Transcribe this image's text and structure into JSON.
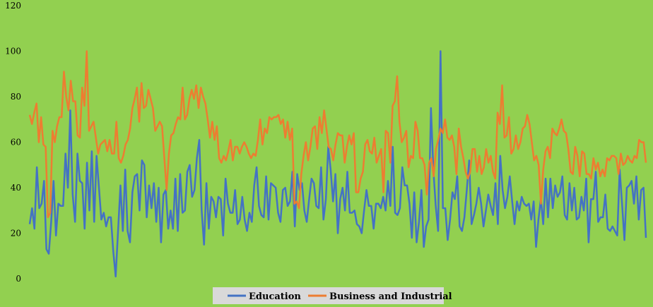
{
  "chart_data": {
    "type": "line",
    "title": "",
    "xlabel": "",
    "ylabel": "",
    "ylim": [
      0,
      120
    ],
    "yticks": [
      0,
      20,
      40,
      60,
      80,
      100,
      120
    ],
    "grid": false,
    "legend_position": "bottom",
    "series": [
      {
        "name": "Education",
        "color": "#4472C4",
        "values": [
          24,
          31,
          22,
          49,
          31,
          33,
          43,
          13,
          11,
          25,
          43,
          19,
          33,
          32,
          32,
          55,
          40,
          74,
          37,
          25,
          55,
          43,
          42,
          22,
          51,
          30,
          56,
          25,
          54,
          40,
          26,
          29,
          23,
          27,
          27,
          12,
          1,
          21,
          41,
          21,
          48,
          21,
          16,
          38,
          45,
          46,
          30,
          52,
          50,
          27,
          41,
          31,
          42,
          25,
          40,
          16,
          37,
          39,
          22,
          30,
          22,
          44,
          21,
          46,
          29,
          30,
          47,
          50,
          36,
          39,
          53,
          61,
          30,
          15,
          42,
          22,
          36,
          34,
          27,
          36,
          35,
          19,
          44,
          33,
          29,
          29,
          39,
          24,
          26,
          36,
          26,
          21,
          29,
          25,
          41,
          49,
          32,
          28,
          27,
          45,
          26,
          42,
          41,
          40,
          29,
          25,
          39,
          40,
          32,
          34,
          47,
          23,
          46,
          39,
          42,
          30,
          25,
          35,
          44,
          42,
          32,
          31,
          49,
          26,
          35,
          58,
          48,
          34,
          46,
          20,
          35,
          40,
          30,
          47,
          29,
          29,
          30,
          24,
          23,
          20,
          30,
          39,
          32,
          32,
          22,
          33,
          33,
          31,
          36,
          30,
          43,
          32,
          58,
          29,
          28,
          31,
          49,
          41,
          41,
          33,
          18,
          38,
          16,
          25,
          39,
          14,
          23,
          26,
          75,
          48,
          32,
          21,
          100,
          31,
          31,
          17,
          26,
          38,
          35,
          45,
          23,
          21,
          27,
          39,
          52,
          24,
          28,
          33,
          40,
          33,
          23,
          30,
          37,
          32,
          28,
          42,
          24,
          54,
          39,
          31,
          36,
          45,
          34,
          24,
          34,
          30,
          36,
          33,
          32,
          33,
          26,
          34,
          14,
          26,
          35,
          24,
          44,
          27,
          44,
          31,
          41,
          36,
          38,
          45,
          28,
          26,
          42,
          30,
          40,
          26,
          27,
          36,
          30,
          44,
          16,
          35,
          35,
          47,
          25,
          27,
          27,
          37,
          22,
          21,
          23,
          21,
          19,
          48,
          33,
          17,
          40,
          41,
          43,
          33,
          45,
          26,
          39,
          40,
          18
        ]
      },
      {
        "name": "Business and Industrial",
        "color": "#ED7D31",
        "values": [
          72,
          68,
          73,
          77,
          60,
          71,
          59,
          58,
          27,
          29,
          65,
          60,
          67,
          71,
          71,
          91,
          80,
          74,
          87,
          78,
          78,
          63,
          62,
          84,
          76,
          100,
          65,
          67,
          69,
          62,
          55,
          59,
          60,
          61,
          56,
          61,
          55,
          55,
          69,
          53,
          51,
          54,
          59,
          61,
          66,
          75,
          79,
          84,
          69,
          86,
          75,
          76,
          83,
          79,
          75,
          65,
          67,
          69,
          67,
          53,
          39,
          55,
          63,
          64,
          68,
          71,
          70,
          84,
          70,
          72,
          79,
          83,
          79,
          85,
          75,
          84,
          80,
          77,
          70,
          62,
          69,
          61,
          67,
          53,
          51,
          54,
          52,
          56,
          61,
          52,
          58,
          58,
          55,
          58,
          60,
          58,
          55,
          53,
          55,
          54,
          61,
          70,
          59,
          66,
          64,
          71,
          70,
          71,
          71,
          72,
          68,
          70,
          62,
          69,
          61,
          66,
          33,
          34,
          31,
          46,
          54,
          60,
          52,
          58,
          66,
          67,
          57,
          71,
          64,
          74,
          66,
          58,
          57,
          52,
          59,
          64,
          63,
          63,
          51,
          58,
          63,
          59,
          64,
          38,
          38,
          44,
          47,
          59,
          61,
          56,
          55,
          62,
          51,
          54,
          57,
          38,
          65,
          64,
          51,
          76,
          78,
          89,
          69,
          60,
          62,
          65,
          49,
          54,
          53,
          69,
          65,
          53,
          53,
          50,
          37,
          51,
          53,
          45,
          57,
          61,
          66,
          64,
          70,
          62,
          61,
          63,
          58,
          46,
          66,
          58,
          53,
          47,
          44,
          47,
          57,
          57,
          47,
          54,
          46,
          49,
          57,
          51,
          54,
          47,
          44,
          73,
          68,
          85,
          62,
          63,
          71,
          55,
          57,
          63,
          57,
          60,
          66,
          67,
          72,
          68,
          60,
          52,
          54,
          50,
          33,
          48,
          56,
          58,
          53,
          66,
          64,
          63,
          66,
          70,
          65,
          64,
          57,
          47,
          46,
          58,
          54,
          45,
          56,
          55,
          46,
          46,
          44,
          53,
          48,
          51,
          45,
          48,
          45,
          53,
          52,
          54,
          54,
          53,
          46,
          55,
          50,
          51,
          54,
          52,
          51,
          54,
          53,
          61,
          60,
          60,
          51
        ]
      }
    ]
  }
}
